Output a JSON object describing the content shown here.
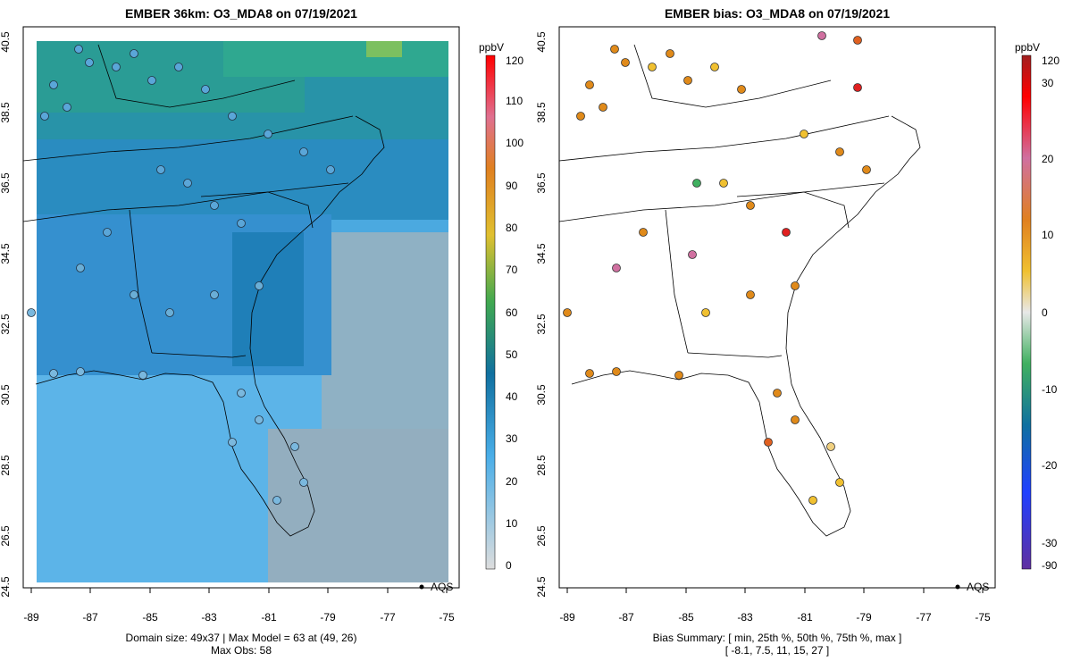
{
  "left_panel": {
    "title": "EMBER 36km: O3_MDA8 on 07/19/2021",
    "footer_line1": "Domain size: 49x37 | Max Model = 63 at (49, 26)",
    "footer_line2": "Max Obs: 58",
    "legend_unit": "ppbV",
    "legend_ticks": [
      "120",
      "110",
      "100",
      "90",
      "80",
      "70",
      "60",
      "50",
      "40",
      "30",
      "20",
      "10",
      "0"
    ],
    "aqs_label": "AQS"
  },
  "right_panel": {
    "title": "EMBER bias: O3_MDA8 on 07/19/2021",
    "footer_line1": "Bias Summary: [ min, 25th %, 50th %, 75th %, max ]",
    "footer_line2": "[ -8.1,   7.5,   11,   15,   27 ]",
    "legend_unit": "ppbV",
    "legend_ticks": [
      "120",
      "30",
      "20",
      "10",
      "0",
      "-10",
      "-20",
      "-30",
      "-90"
    ],
    "aqs_label": "AQS"
  },
  "axes": {
    "x_ticks": [
      "-89",
      "-87",
      "-85",
      "-83",
      "-81",
      "-79",
      "-77",
      "-75"
    ],
    "y_ticks": [
      "40.5",
      "38.5",
      "36.5",
      "34.5",
      "32.5",
      "30.5",
      "28.5",
      "26.5",
      "24.5"
    ],
    "xlim": [
      -89.2,
      -74.8
    ],
    "ylim": [
      24.5,
      40.7
    ]
  },
  "colors": {
    "ocean_model": "#56b0e6",
    "land_model_south": "#3c90d0",
    "land_model_north": "#1f80b8",
    "model_high": "#2aa889",
    "site_obs": "#6aaed6",
    "bias_orange": "#e08a1a",
    "bias_yellow": "#f0c030",
    "bias_pink": "#d070a0",
    "bias_red": "#e02020",
    "bias_green": "#40b060"
  }
}
